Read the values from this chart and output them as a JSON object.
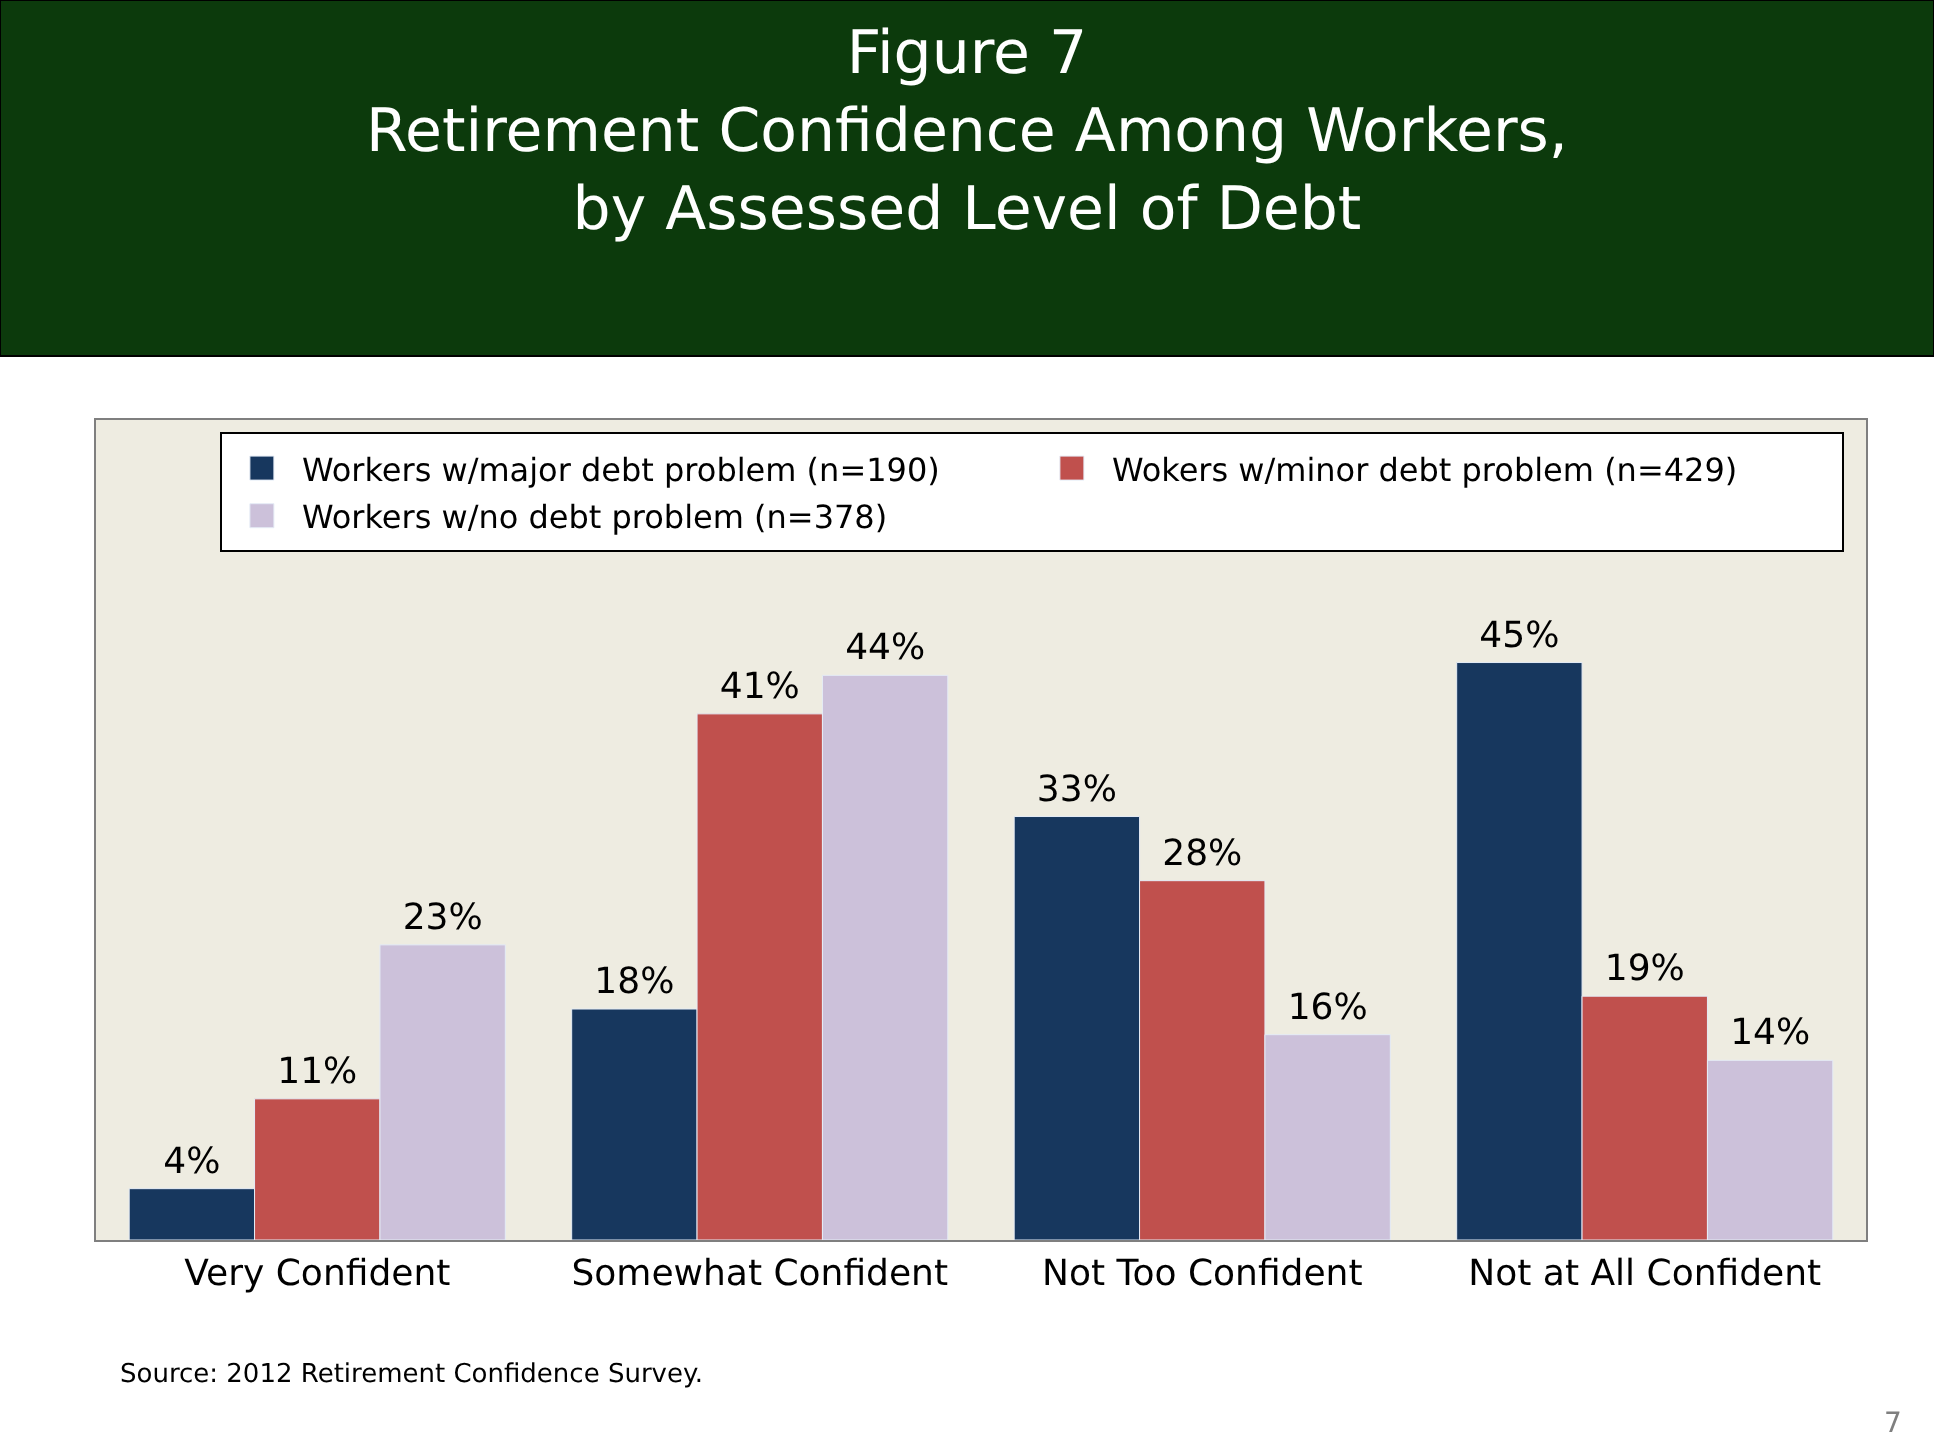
{
  "chart_data": {
    "type": "bar",
    "title": "Figure 7\nRetirement Confidence Among Workers,\nby Assessed Level of Debt",
    "categories": [
      "Very Confident",
      "Somewhat Confident",
      "Not Too Confident",
      "Not at All Confident"
    ],
    "series": [
      {
        "name": "Workers w/major debt problem (n=190)",
        "color": "#17375e",
        "values": [
          4,
          18,
          33,
          45
        ],
        "value_labels": [
          "4%",
          "18%",
          "33%",
          "45%"
        ]
      },
      {
        "name": "Wokers w/minor debt problem (n=429)",
        "color": "#c0504d",
        "values": [
          11,
          41,
          28,
          19
        ],
        "value_labels": [
          "11%",
          "41%",
          "28%",
          "19%"
        ]
      },
      {
        "name": "Workers w/no debt problem (n=378)",
        "color": "#ccc1da",
        "values": [
          23,
          44,
          16,
          14
        ],
        "value_labels": [
          "23%",
          "44%",
          "16%",
          "14%"
        ]
      }
    ],
    "legend": "top",
    "grid": false,
    "annotations": [
      "Source: 2012 Retirement Confidence Survey.",
      "7"
    ]
  }
}
